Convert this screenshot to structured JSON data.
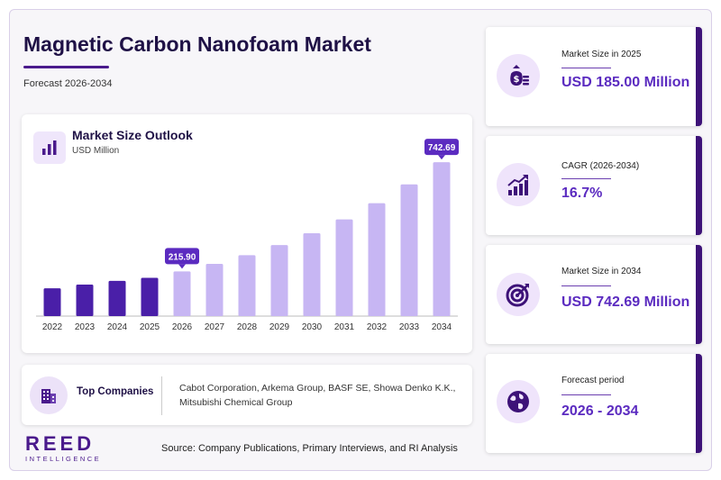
{
  "header": {
    "title": "Magnetic Carbon Nanofoam Market",
    "subtitle": "Forecast 2026-2034"
  },
  "chart_card": {
    "title": "Market Size Outlook",
    "unit": "USD Million"
  },
  "chart_data": {
    "type": "bar",
    "title": "Market Size Outlook",
    "ylabel": "USD Million",
    "categories": [
      "2022",
      "2023",
      "2024",
      "2025",
      "2026",
      "2027",
      "2028",
      "2029",
      "2030",
      "2031",
      "2032",
      "2033",
      "2034"
    ],
    "values": [
      134,
      152,
      170,
      185.0,
      215.9,
      252,
      294,
      343,
      400,
      467,
      545,
      636,
      742.69
    ],
    "data_labels": [
      {
        "category": "2026",
        "text": "215.90"
      },
      {
        "category": "2034",
        "text": "742.69"
      }
    ],
    "ylim": [
      0,
      800
    ],
    "colors": {
      "historical": "#4a1fa8",
      "forecast": "#c7b6f3",
      "callout": "#5b2bc0"
    },
    "grid": false,
    "legend": "none"
  },
  "companies": {
    "label": "Top Companies",
    "text": "Cabot Corporation, Arkema Group, BASF SE, Showa Denko K.K., Mitsubishi Chemical Group",
    "icon": "building-icon"
  },
  "kpis": [
    {
      "label": "Market Size in 2025",
      "value": "USD 185.00 Million",
      "icon": "money-bag-icon"
    },
    {
      "label": "CAGR (2026-2034)",
      "value": "16.7%",
      "icon": "growth-chart-icon"
    },
    {
      "label": "Market Size in 2034",
      "value": "USD 742.69 Million",
      "icon": "target-icon"
    },
    {
      "label": "Forecast period",
      "value": "2026 - 2034",
      "icon": "globe-icon"
    }
  ],
  "logo": {
    "main": "REED",
    "sub": "INTELLIGENCE"
  },
  "source": "Source: Company Publications, Primary Interviews, and RI Analysis",
  "theme": {
    "primary": "#3d1278",
    "accent": "#5b2bc0",
    "light": "#efe4fb"
  }
}
